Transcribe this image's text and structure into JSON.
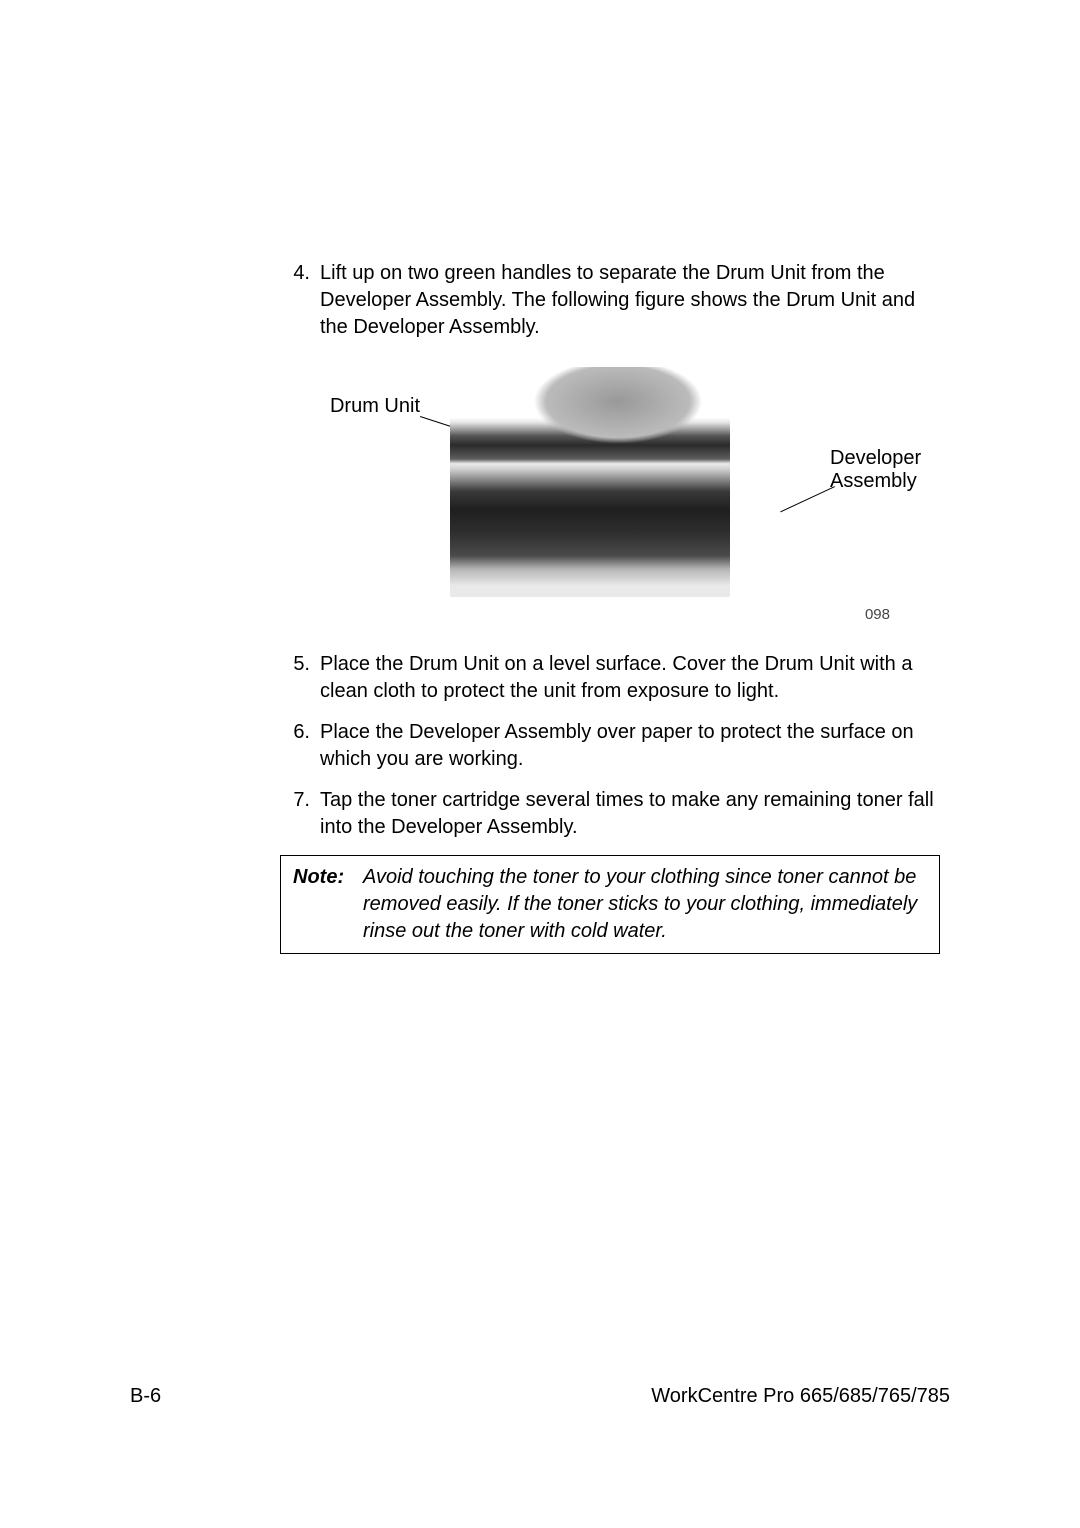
{
  "steps": {
    "s4": {
      "num": "4.",
      "text": "Lift up on two green handles to separate the Drum Unit from the Developer Assembly. The following figure shows the Drum Unit and the Developer Assembly."
    },
    "s5": {
      "num": "5.",
      "text": "Place the Drum Unit on a level surface. Cover the Drum Unit with a clean cloth to protect the unit from exposure to light."
    },
    "s6": {
      "num": "6.",
      "text": "Place the Developer Assembly over paper to protect the surface on which you are working."
    },
    "s7": {
      "num": "7.",
      "text": "Tap the toner cartridge several times to make any remaining toner fall into the Developer Assembly."
    }
  },
  "figure": {
    "callout_left": "Drum Unit",
    "callout_right_l1": "Developer",
    "callout_right_l2": "Assembly",
    "number": "098"
  },
  "note": {
    "label": "Note:",
    "text": "Avoid touching the toner to your clothing since toner cannot be removed easily. If the toner sticks to your clothing, immediately rinse out the toner with cold water."
  },
  "footer": {
    "page": "B-6",
    "product": "WorkCentre Pro 665/685/765/785"
  }
}
